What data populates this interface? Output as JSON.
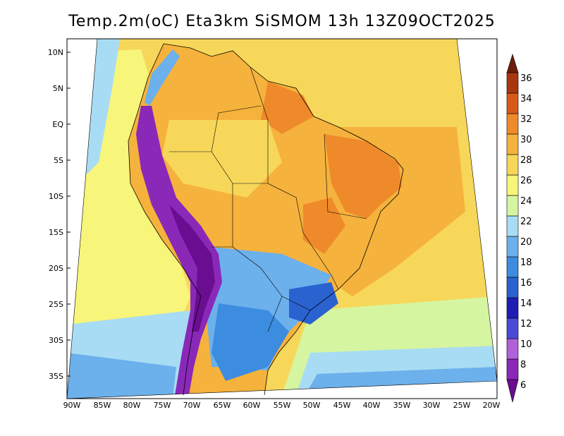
{
  "title": "Temp.2m(oC) Eta3km SiSMOM 13h 13Z09OCT2025",
  "axes": {
    "lat_labels": [
      "10N",
      "5N",
      "EQ",
      "5S",
      "10S",
      "15S",
      "20S",
      "25S",
      "30S",
      "35S"
    ],
    "lon_labels": [
      "90W",
      "85W",
      "80W",
      "75W",
      "70W",
      "65W",
      "60W",
      "55W",
      "50W",
      "45W",
      "40W",
      "35W",
      "30W",
      "25W",
      "20W"
    ]
  },
  "colorbar": {
    "labels": [
      "6",
      "8",
      "10",
      "12",
      "14",
      "16",
      "18",
      "20",
      "22",
      "24",
      "26",
      "28",
      "30",
      "32",
      "34",
      "36"
    ],
    "colors": [
      "#6a0d91",
      "#8a28b8",
      "#b060d8",
      "#4a4ad8",
      "#1e1eb4",
      "#2a62d0",
      "#3c8ce0",
      "#6cb0ec",
      "#a8dcf4",
      "#d6f5a0",
      "#f7f57a",
      "#f7d75a",
      "#f5b23c",
      "#ef8a2a",
      "#d85a1a",
      "#a8360e",
      "#6e1e08"
    ]
  },
  "map_colors": {
    "ocean_warm": "#f5b23c",
    "ocean_mild": "#f7d75a",
    "ocean_cool": "#f7f57a",
    "ocean_cold": "#d6f5a0",
    "ocean_colder": "#a8dcf4",
    "land_hot": "#ef8a2a",
    "land_warm": "#f5b23c",
    "land_mild": "#f7d75a",
    "andes_cold": "#6a0d91",
    "andes_mid": "#8a28b8",
    "south_cool": "#6cb0ec",
    "south_cold": "#3c8ce0",
    "south_colder": "#2a62d0"
  }
}
